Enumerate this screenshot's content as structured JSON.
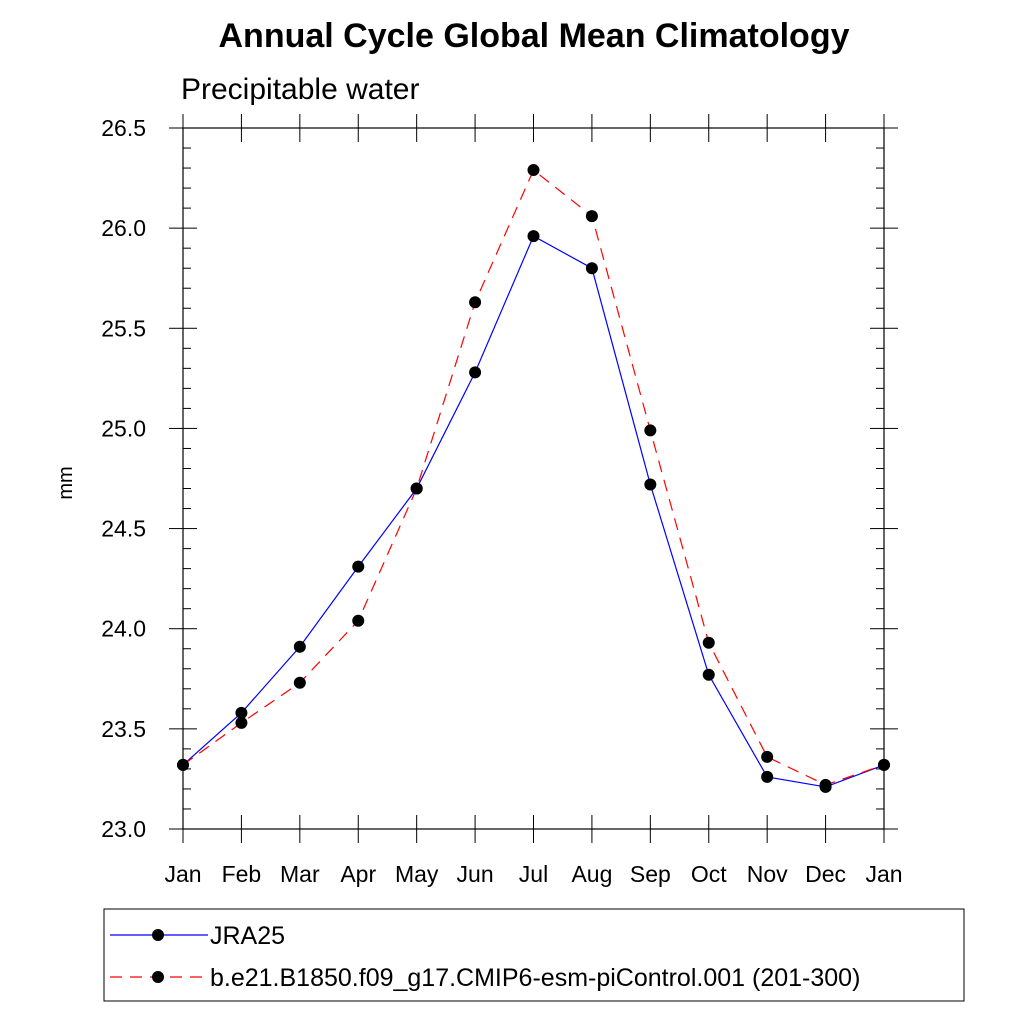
{
  "chart_data": {
    "type": "line",
    "title": "Annual Cycle Global Mean Climatology",
    "subtitle": "Precipitable water",
    "xlabel": "",
    "ylabel": "mm",
    "ylim": [
      23.0,
      26.5
    ],
    "yticks": [
      "23.0",
      "23.5",
      "24.0",
      "24.5",
      "25.0",
      "25.5",
      "26.0",
      "26.5"
    ],
    "categories": [
      "Jan",
      "Feb",
      "Mar",
      "Apr",
      "May",
      "Jun",
      "Jul",
      "Aug",
      "Sep",
      "Oct",
      "Nov",
      "Dec",
      "Jan"
    ],
    "series": [
      {
        "name": "JRA25",
        "color": "#0000ff",
        "dash": "solid",
        "values": [
          23.32,
          23.58,
          23.91,
          24.31,
          24.7,
          25.28,
          25.96,
          25.8,
          24.72,
          23.77,
          23.26,
          23.21,
          23.32
        ]
      },
      {
        "name": "b.e21.B1850.f09_g17.CMIP6-esm-piControl.001 (201-300)",
        "color": "#ff0000",
        "dash": "dashed",
        "values": [
          23.32,
          23.53,
          23.73,
          24.04,
          24.7,
          25.63,
          26.29,
          26.06,
          24.99,
          23.93,
          23.36,
          23.22,
          23.32
        ]
      }
    ],
    "marker_color": "#000000",
    "legend_position": "bottom"
  }
}
